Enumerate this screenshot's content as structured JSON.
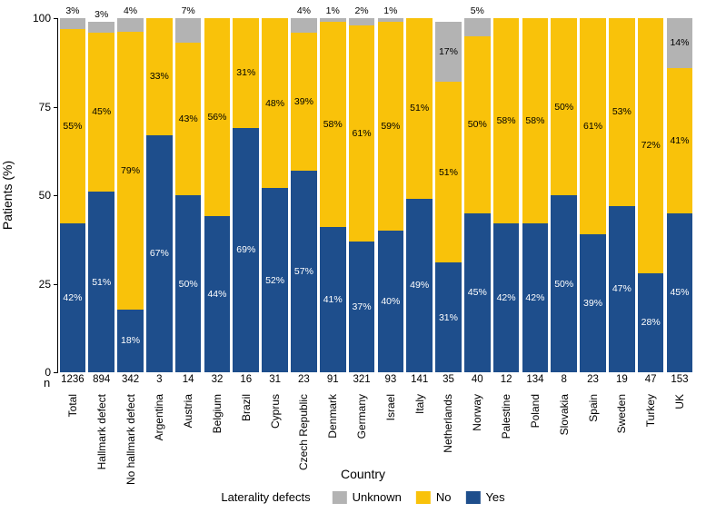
{
  "chart": {
    "type": "stacked-bar",
    "ylabel": "Patients (%)",
    "xlabel": "Country",
    "legend_title": "Laterality defects",
    "n_label": "n",
    "ylim": [
      0,
      100
    ],
    "ytick_step": 25,
    "background_color": "#ffffff",
    "series": [
      {
        "key": "yes",
        "label": "Yes",
        "color": "#1e4e8c",
        "text_color": "#ffffff"
      },
      {
        "key": "no",
        "label": "No",
        "color": "#f9c20a",
        "text_color": "#000000"
      },
      {
        "key": "unknown",
        "label": "Unknown",
        "color": "#b3b3b3",
        "text_color": "#000000"
      }
    ],
    "legend_order": [
      "unknown",
      "no",
      "yes"
    ],
    "categories": [
      {
        "name": "Total",
        "n": 1236,
        "yes": 42,
        "no": 55,
        "unknown": 3
      },
      {
        "name": "Hallmark defect",
        "n": 894,
        "yes": 51,
        "no": 45,
        "unknown": 3
      },
      {
        "name": "No hallmark defect",
        "n": 342,
        "yes": 18,
        "no": 79,
        "unknown": 4
      },
      {
        "name": "Argentina",
        "n": 3,
        "yes": 67,
        "no": 33,
        "unknown": 0
      },
      {
        "name": "Austria",
        "n": 14,
        "yes": 50,
        "no": 43,
        "unknown": 7
      },
      {
        "name": "Belgium",
        "n": 32,
        "yes": 44,
        "no": 56,
        "unknown": 0
      },
      {
        "name": "Brazil",
        "n": 16,
        "yes": 69,
        "no": 31,
        "unknown": 0
      },
      {
        "name": "Cyprus",
        "n": 31,
        "yes": 52,
        "no": 48,
        "unknown": 0
      },
      {
        "name": "Czech Republic",
        "n": 23,
        "yes": 57,
        "no": 39,
        "unknown": 4
      },
      {
        "name": "Denmark",
        "n": 91,
        "yes": 41,
        "no": 58,
        "unknown": 1
      },
      {
        "name": "Germany",
        "n": 321,
        "yes": 37,
        "no": 61,
        "unknown": 2
      },
      {
        "name": "Israel",
        "n": 93,
        "yes": 40,
        "no": 59,
        "unknown": 1
      },
      {
        "name": "Italy",
        "n": 141,
        "yes": 49,
        "no": 51,
        "unknown": 0
      },
      {
        "name": "Netherlands",
        "n": 35,
        "yes": 31,
        "no": 51,
        "unknown": 17
      },
      {
        "name": "Norway",
        "n": 40,
        "yes": 45,
        "no": 50,
        "unknown": 5
      },
      {
        "name": "Palestine",
        "n": 12,
        "yes": 42,
        "no": 58,
        "unknown": 0
      },
      {
        "name": "Poland",
        "n": 134,
        "yes": 42,
        "no": 58,
        "unknown": 0
      },
      {
        "name": "Slovakia",
        "n": 8,
        "yes": 50,
        "no": 50,
        "unknown": 0
      },
      {
        "name": "Spain",
        "n": 23,
        "yes": 39,
        "no": 61,
        "unknown": 0
      },
      {
        "name": "Sweden",
        "n": 19,
        "yes": 47,
        "no": 53,
        "unknown": 0
      },
      {
        "name": "Turkey",
        "n": 47,
        "yes": 28,
        "no": 72,
        "unknown": 0
      },
      {
        "name": "UK",
        "n": 153,
        "yes": 45,
        "no": 41,
        "unknown": 14
      }
    ]
  }
}
